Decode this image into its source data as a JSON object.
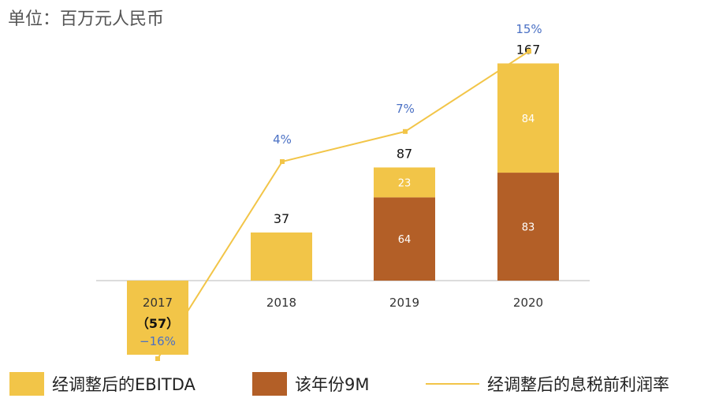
{
  "unit_label": "单位：百万元人民币",
  "chart_data": {
    "type": "bar",
    "categories": [
      "2017",
      "2018",
      "2019",
      "2020"
    ],
    "stack_series": [
      {
        "name": "该年份9M",
        "color": "#b35f27",
        "values": [
          null,
          null,
          64,
          83
        ],
        "labels": [
          "",
          "",
          "64",
          "83"
        ]
      },
      {
        "name": "经调整后的EBITDA",
        "color": "#f2c548",
        "values": [
          -57,
          37,
          23,
          84
        ],
        "labels": [
          "",
          "",
          "23",
          "84"
        ]
      }
    ],
    "totals": [
      -57,
      37,
      87,
      167
    ],
    "total_labels": [
      "（57）",
      "37",
      "87",
      "167"
    ],
    "line_series": {
      "name": "经调整后的息税前利润率",
      "color": "#f2c548",
      "values": [
        -16,
        4,
        7,
        15
      ],
      "labels": [
        "−16%",
        "4%",
        "7%",
        "15%"
      ],
      "label_color": "#4a70c4"
    },
    "ylim": [
      -57,
      167
    ],
    "legend": [
      {
        "label": "经调整后的EBITDA",
        "kind": "box",
        "color": "#f2c548"
      },
      {
        "label": "该年份9M",
        "kind": "box",
        "color": "#b35f27"
      },
      {
        "label": "经调整后的息税前利润率",
        "kind": "line",
        "color": "#f2c548"
      }
    ],
    "legend_position": "bottom",
    "grid": false
  }
}
